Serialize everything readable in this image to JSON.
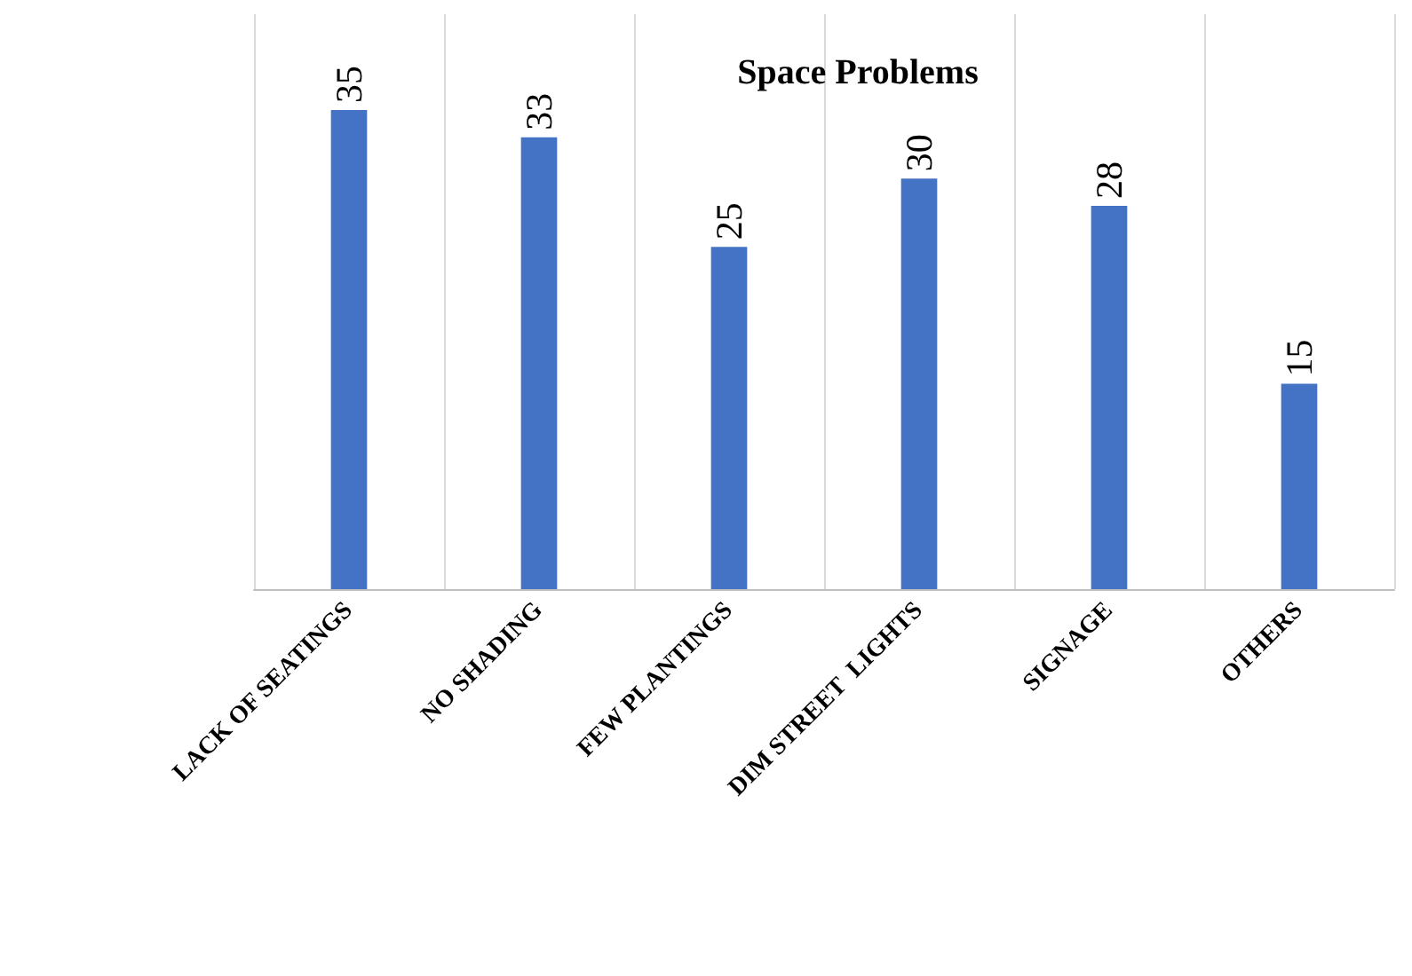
{
  "chart_data": {
    "type": "bar",
    "title": "Space Problems",
    "categories": [
      "LACK OF SEATINGS",
      "NO SHADING",
      "FEW PLANTINGS",
      "DIM STREET  LIGHTS",
      "SIGNAGE",
      "OTHERS"
    ],
    "values": [
      35,
      33,
      25,
      30,
      28,
      15
    ],
    "color": "#4472c4",
    "data_labels": true,
    "grid": "x"
  }
}
